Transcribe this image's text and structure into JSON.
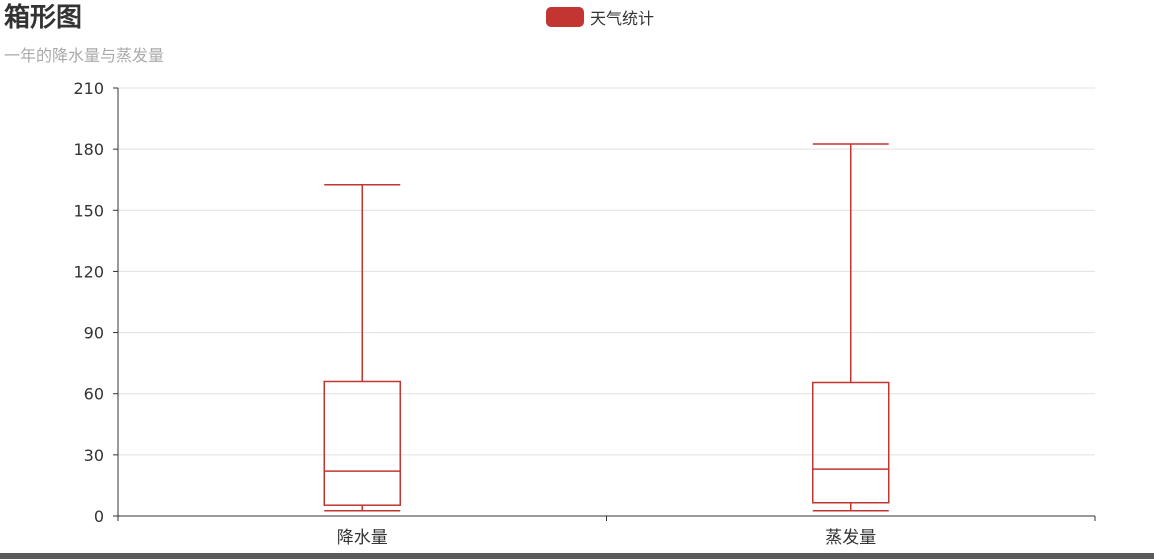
{
  "chart_data": {
    "type": "boxplot",
    "title": "箱形图",
    "subtitle": "一年的降水量与蒸发量",
    "legend": [
      "天气统计"
    ],
    "legend_position": "top-center",
    "categories": [
      "降水量",
      "蒸发量"
    ],
    "series": [
      {
        "name": "天气统计",
        "boxes": [
          {
            "category": "降水量",
            "min": 2.6,
            "q1": 5.3,
            "median": 22.0,
            "q3": 66.0,
            "max": 162.5
          },
          {
            "category": "蒸发量",
            "min": 2.6,
            "q1": 6.5,
            "median": 23.0,
            "q3": 65.5,
            "max": 182.5
          }
        ]
      }
    ],
    "ylim": [
      0,
      210
    ],
    "yticks": [
      0,
      30,
      60,
      90,
      120,
      150,
      180,
      210
    ],
    "grid": true,
    "colors": {
      "box": "#c23531",
      "grid": "#e0e0e0",
      "axis": "#333333"
    }
  }
}
